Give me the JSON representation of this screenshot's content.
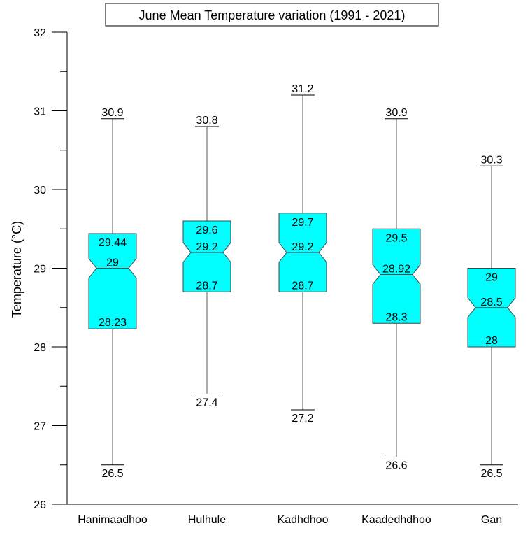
{
  "chart_data": {
    "type": "boxplot",
    "title": "June Mean Temperature variation (1991 - 2021)",
    "xlabel": "",
    "ylabel": "Temperature (°C)",
    "ylim": [
      26,
      32
    ],
    "yticks": [
      "26",
      "27",
      "28",
      "29",
      "30",
      "31",
      "32"
    ],
    "notched": true,
    "box_color": "#00FFFF",
    "categories": [
      "Hanimaadhoo",
      "Hulhule",
      "Kadhdhoo",
      "Kaadedhdhoo",
      "Gan"
    ],
    "boxes": [
      {
        "category": "Hanimaadhoo",
        "min": 26.5,
        "q1": 28.23,
        "median": 29,
        "q3": 29.44,
        "max": 30.9,
        "labels": {
          "min": "26.5",
          "q1": "28.23",
          "median": "29",
          "q3": "29.44",
          "max": "30.9"
        }
      },
      {
        "category": "Hulhule",
        "min": 27.4,
        "q1": 28.7,
        "median": 29.2,
        "q3": 29.6,
        "max": 30.8,
        "labels": {
          "min": "27.4",
          "q1": "28.7",
          "median": "29.2",
          "q3": "29.6",
          "max": "30.8"
        }
      },
      {
        "category": "Kadhdhoo",
        "min": 27.2,
        "q1": 28.7,
        "median": 29.2,
        "q3": 29.7,
        "max": 31.2,
        "labels": {
          "min": "27.2",
          "q1": "28.7",
          "median": "29.2",
          "q3": "29.7",
          "max": "31.2"
        }
      },
      {
        "category": "Kaadedhdhoo",
        "min": 26.6,
        "q1": 28.3,
        "median": 28.92,
        "q3": 29.5,
        "max": 30.9,
        "labels": {
          "min": "26.6",
          "q1": "28.3",
          "median": "28.92",
          "q3": "29.5",
          "max": "30.9"
        }
      },
      {
        "category": "Gan",
        "min": 26.5,
        "q1": 28,
        "median": 28.5,
        "q3": 29,
        "max": 30.3,
        "labels": {
          "min": "26.5",
          "q1": "28",
          "median": "28.5",
          "q3": "29",
          "max": "30.3"
        }
      }
    ]
  }
}
